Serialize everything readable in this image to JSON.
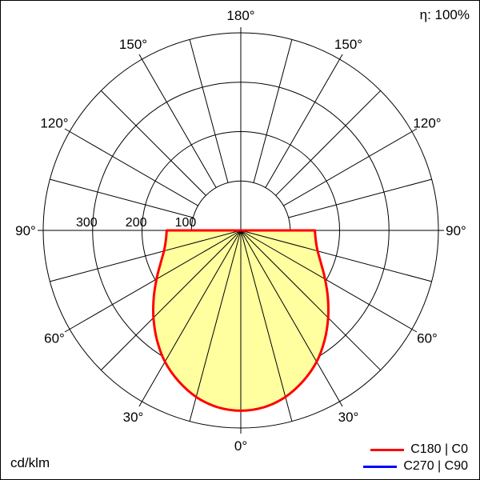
{
  "chart_data": {
    "type": "polar-line",
    "description": "Luminous intensity distribution polar diagram",
    "annotations": {
      "efficiency": "η: 100%",
      "unit": "cd/klm"
    },
    "legend": [
      {
        "label": "C180 | C0",
        "color": "#ff0000"
      },
      {
        "label": "C270 | C90",
        "color": "#0000ff"
      }
    ],
    "radial_axis": {
      "ticks": [
        100,
        200,
        300
      ],
      "max": 400,
      "unit": "cd/klm"
    },
    "angle_labels": [
      "0°",
      "30°",
      "60°",
      "90°",
      "120°",
      "150°",
      "180°"
    ],
    "angle_label_step_deg": 30,
    "angle_grid_step_deg": 15,
    "ray_step_deg": 15,
    "series": [
      {
        "name": "C180 | C0",
        "color": "#ff0000",
        "fill": "#ffffa0",
        "curve_visible": true,
        "gamma_deg": [
          0,
          7.5,
          15,
          22.5,
          30,
          37.5,
          45,
          52.5,
          60,
          67.5,
          75,
          82.5,
          90
        ],
        "cd_per_klm": [
          365,
          361,
          349,
          330,
          307,
          279,
          250,
          222,
          197,
          176,
          161,
          153,
          150
        ]
      },
      {
        "name": "C270 | C90",
        "color": "#0000ff",
        "curve_visible": false
      }
    ]
  }
}
